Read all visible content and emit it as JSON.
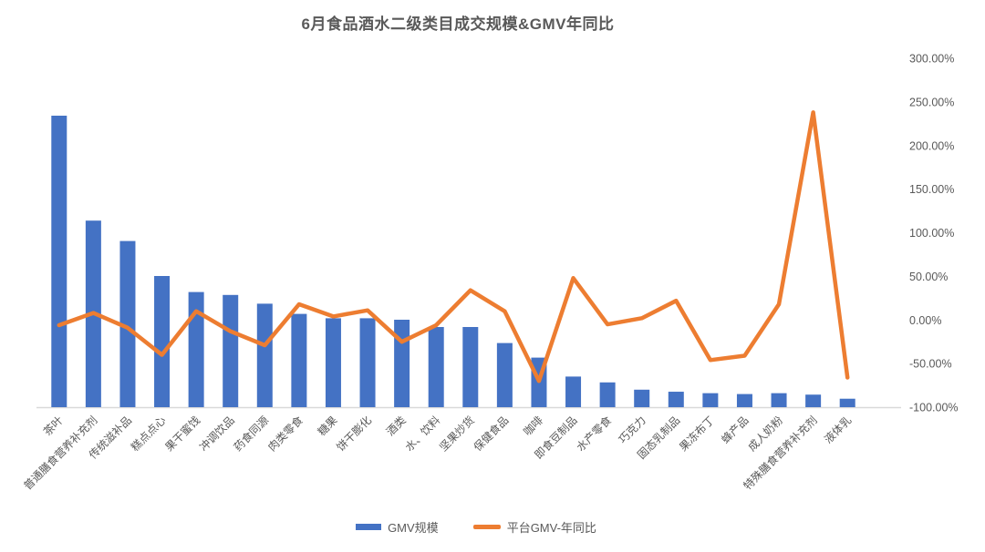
{
  "title": "6月食品酒水二级类目成交规模&GMV年同比",
  "legend": {
    "items": [
      {
        "label": "GMV规模",
        "type": "bar"
      },
      {
        "label": "平台GMV-年同比",
        "type": "line"
      }
    ]
  },
  "colors": {
    "bar": "#4472C4",
    "line": "#ED7D31",
    "text": "#595959",
    "axis_line": "#D9D9D9",
    "background": "#FFFFFF"
  },
  "axes": {
    "right_ticks": [
      "300.00%",
      "250.00%",
      "200.00%",
      "150.00%",
      "100.00%",
      "50.00%",
      "0.00%",
      "-50.00%",
      "-100.00%"
    ]
  },
  "chart_data": {
    "type": "combo (bar + line)",
    "title": "6月食品酒水二级类目成交规模&GMV年同比",
    "categories": [
      "茶叶",
      "普通膳食营养补充剂",
      "传统滋补品",
      "糕点点心",
      "果干蜜饯",
      "冲调饮品",
      "药食同源",
      "肉类零食",
      "糖果",
      "饼干膨化",
      "酒类",
      "水、饮料",
      "坚果炒货",
      "保健食品",
      "咖啡",
      "即食豆制品",
      "水产零食",
      "巧克力",
      "固态乳制品",
      "果冻布丁",
      "蜂产品",
      "成人奶粉",
      "特殊膳食营养补充剂",
      "液体乳"
    ],
    "series": [
      {
        "name": "GMV规模",
        "type": "bar",
        "axis": "left (hidden, no scale shown)",
        "unit": "relative index, largest bar = 100",
        "values": [
          100,
          64,
          57,
          45,
          39.5,
          38.5,
          35.5,
          32,
          30.5,
          30.5,
          30,
          27.5,
          27.5,
          22,
          17,
          10.5,
          8.5,
          6,
          5.3,
          4.8,
          4.5,
          4.8,
          4.3,
          2.9
        ]
      },
      {
        "name": "平台GMV-年同比",
        "type": "line",
        "axis": "right",
        "unit": "percent",
        "values": [
          -6,
          8,
          -9,
          -40,
          10,
          -13,
          -29,
          18,
          4,
          11,
          -25,
          -6,
          34,
          10,
          -70,
          48,
          -5,
          2,
          22,
          -46,
          -41,
          18,
          238,
          -66
        ]
      }
    ],
    "right_axis": {
      "min": -100,
      "max": 300,
      "tick_step": 50,
      "format": "0.00%"
    },
    "left_axis": "hidden",
    "grid": false,
    "legend_position": "bottom",
    "x_label_rotation_deg": -45
  }
}
